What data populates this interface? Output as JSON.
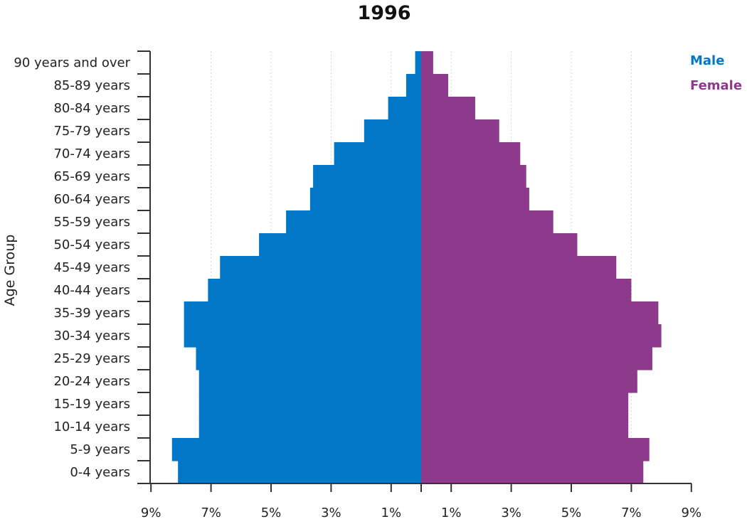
{
  "chart_data": {
    "type": "bar",
    "orientation": "horizontal-population-pyramid",
    "title": "1996",
    "ylabel": "Age Group",
    "xlabel": "",
    "xlim": [
      -9,
      9
    ],
    "x_ticks": [
      -9,
      -7,
      -5,
      -3,
      -1,
      1,
      3,
      5,
      7,
      9
    ],
    "x_tick_labels": [
      "9%",
      "7%",
      "5%",
      "3%",
      "1%",
      "1%",
      "3%",
      "5%",
      "7%",
      "9%"
    ],
    "grid": "vertical",
    "legend_position": "top-right",
    "categories": [
      "0-4 years",
      "5-9 years",
      "10-14 years",
      "15-19 years",
      "20-24 years",
      "25-29 years",
      "30-34 years",
      "35-39 years",
      "40-44 years",
      "45-49 years",
      "50-54 years",
      "55-59 years",
      "60-64 years",
      "65-69 years",
      "70-74 years",
      "75-79 years",
      "80-84 years",
      "85-89 years",
      "90 years and over"
    ],
    "series": [
      {
        "name": "Male",
        "color": "#0277c8",
        "side": "left",
        "values": [
          8.1,
          8.3,
          7.4,
          7.4,
          7.4,
          7.5,
          7.9,
          7.9,
          7.1,
          6.7,
          5.4,
          4.5,
          3.7,
          3.6,
          2.9,
          1.9,
          1.1,
          0.5,
          0.2
        ]
      },
      {
        "name": "Female",
        "color": "#8e3a8c",
        "side": "right",
        "values": [
          7.4,
          7.6,
          6.9,
          6.9,
          7.2,
          7.7,
          8.0,
          7.9,
          7.0,
          6.5,
          5.2,
          4.4,
          3.6,
          3.5,
          3.3,
          2.6,
          1.8,
          0.9,
          0.4
        ]
      }
    ]
  }
}
